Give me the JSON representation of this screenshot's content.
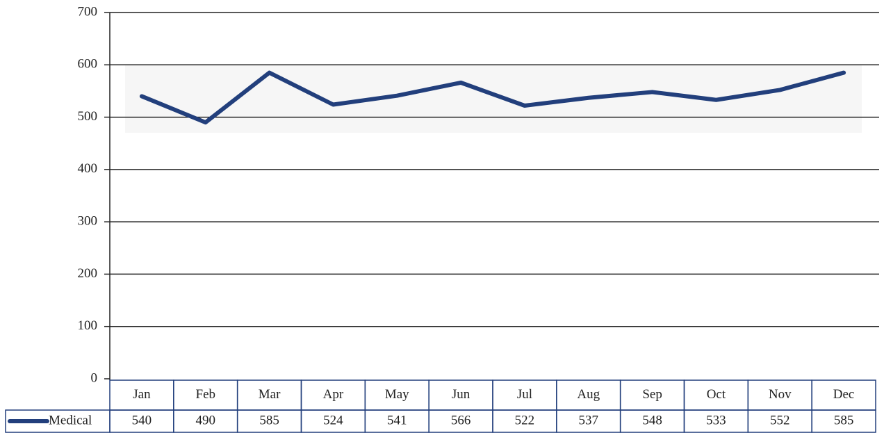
{
  "chart_data": {
    "type": "line",
    "categories": [
      "Jan",
      "Feb",
      "Mar",
      "Apr",
      "May",
      "Jun",
      "Jul",
      "Aug",
      "Sep",
      "Oct",
      "Nov",
      "Dec"
    ],
    "series": [
      {
        "name": "Medical",
        "color": "#223f7c",
        "values": [
          540,
          490,
          585,
          524,
          541,
          566,
          522,
          537,
          548,
          533,
          552,
          585
        ]
      }
    ],
    "ylim": [
      0,
      700
    ],
    "yticks": [
      0,
      100,
      200,
      300,
      400,
      500,
      600,
      700
    ],
    "grid": true
  }
}
